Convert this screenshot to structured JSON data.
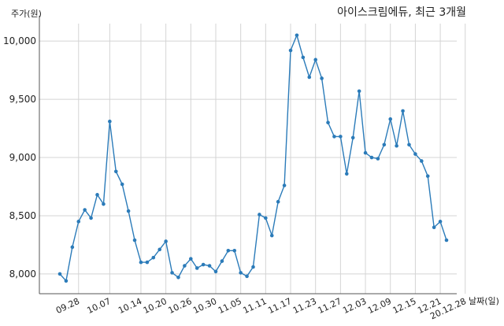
{
  "chart_data": {
    "type": "line",
    "title": "아이스크림에듀, 최근 3개월",
    "ylabel": "주가(원)",
    "xlabel": "날짜(일)",
    "ylim": [
      7830,
      10150
    ],
    "yticks": [
      8000,
      8500,
      9000,
      9500,
      10000
    ],
    "ytick_labels": [
      "8,000",
      "8,500",
      "9,000",
      "9,500",
      "10,000"
    ],
    "xtick_labels": [
      "09.28",
      "10.07",
      "10.14",
      "10.20",
      "10.26",
      "10.30",
      "11.05",
      "11.11",
      "11.17",
      "11.23",
      "11.27",
      "12.03",
      "12.09",
      "12.15",
      "12.21",
      "20.12.28"
    ],
    "xtick_positions": [
      3,
      8,
      13,
      17,
      21,
      25,
      29,
      33,
      37,
      41,
      45,
      49,
      53,
      57,
      61,
      65
    ],
    "grid": true,
    "colors": {
      "line": "#2b7bb9",
      "grid": "#d4d4d4"
    },
    "series": [
      {
        "values": [
          8000,
          7940,
          8230,
          8450,
          8550,
          8480,
          8680,
          8600,
          9310,
          8880,
          8770,
          8540,
          8290,
          8100,
          8100,
          8140,
          8210,
          8280,
          8010,
          7970,
          8070,
          8130,
          8050,
          8080,
          8070,
          8020,
          8110,
          8200,
          8200,
          8010,
          7980,
          8060,
          8510,
          8480,
          8330,
          8620,
          8760,
          9920,
          10050,
          9860,
          9690,
          9840,
          9680,
          9300,
          9180,
          9180,
          8860,
          9170,
          9570,
          9040,
          9000,
          8990,
          9110,
          9330,
          9100,
          9400,
          9110,
          9030,
          8970,
          8840,
          8400,
          8450,
          8290
        ]
      }
    ]
  }
}
